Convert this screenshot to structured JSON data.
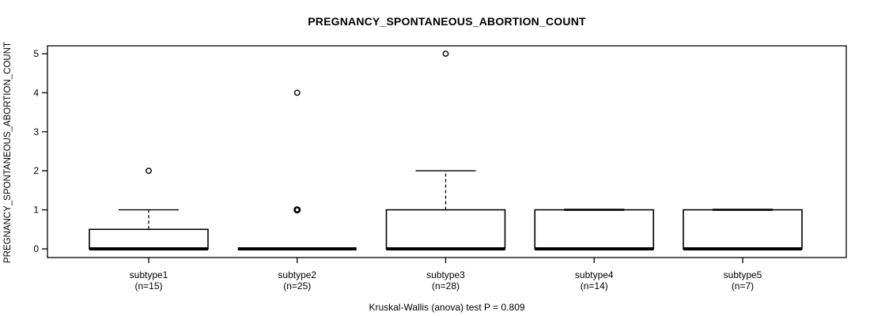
{
  "chart_data": {
    "type": "box",
    "title": "PREGNANCY_SPONTANEOUS_ABORTION_COUNT",
    "ylabel": "PREGNANCY_SPONTANEOUS_ABORTION_COUNT",
    "xlabel": "",
    "ylim": [
      0,
      5
    ],
    "yticks": [
      0,
      1,
      2,
      3,
      4,
      5
    ],
    "grid": false,
    "legend": "none",
    "annotation": "Kruskal-Wallis (anova) test P = 0.809",
    "categories": [
      "subtype1",
      "subtype2",
      "subtype3",
      "subtype4",
      "subtype5"
    ],
    "sample_sizes": [
      15,
      25,
      28,
      14,
      7
    ],
    "series": [
      {
        "name": "subtype1",
        "n_label": "(n=15)",
        "q1": 0,
        "median": 0,
        "q3": 0.5,
        "whisker_low": 0,
        "whisker_high": 1,
        "outliers": [
          2
        ],
        "outlier_bold": [
          false
        ]
      },
      {
        "name": "subtype2",
        "n_label": "(n=25)",
        "q1": 0,
        "median": 0,
        "q3": 0,
        "whisker_low": 0,
        "whisker_high": 0,
        "outliers": [
          1,
          4
        ],
        "outlier_bold": [
          true,
          false
        ]
      },
      {
        "name": "subtype3",
        "n_label": "(n=28)",
        "q1": 0,
        "median": 0,
        "q3": 1,
        "whisker_low": 0,
        "whisker_high": 2,
        "outliers": [
          5
        ],
        "outlier_bold": [
          false
        ]
      },
      {
        "name": "subtype4",
        "n_label": "(n=14)",
        "q1": 0,
        "median": 0,
        "q3": 1,
        "whisker_low": 0,
        "whisker_high": 1,
        "outliers": [],
        "outlier_bold": []
      },
      {
        "name": "subtype5",
        "n_label": "(n=7)",
        "q1": 0,
        "median": 0,
        "q3": 1,
        "whisker_low": 0,
        "whisker_high": 1,
        "outliers": [],
        "outlier_bold": []
      }
    ]
  },
  "colors": {
    "background": "#ffffff",
    "box_fill": "#ffffff",
    "box_border": "#000000",
    "median": "#000000",
    "axis": "#000000",
    "text": "#000000"
  }
}
